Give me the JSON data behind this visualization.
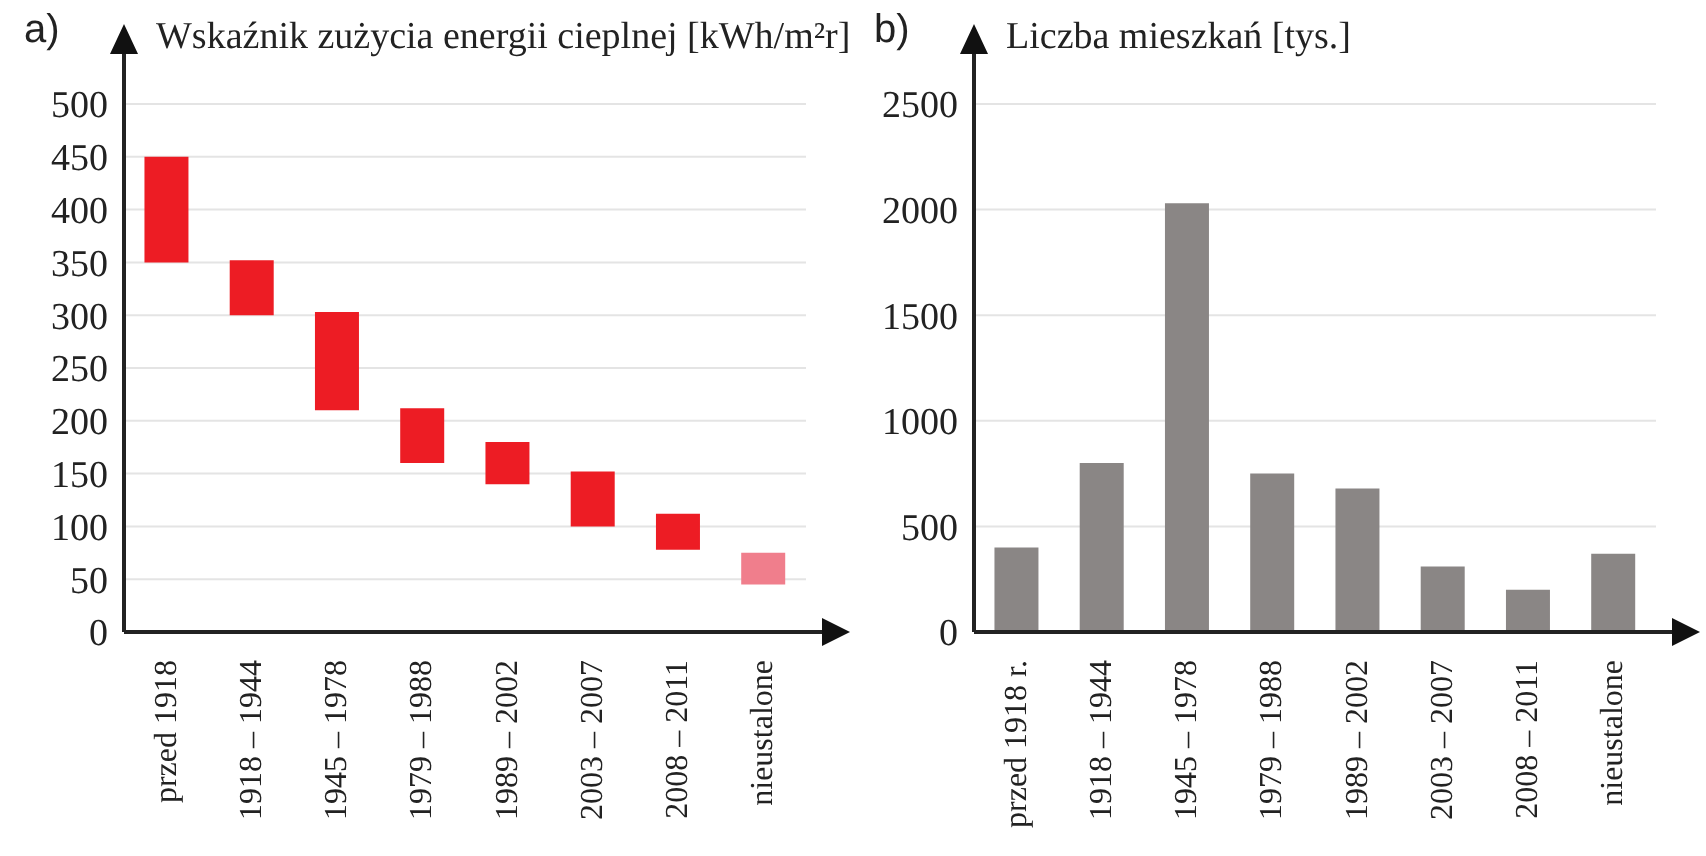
{
  "chart_data": [
    {
      "type": "bar",
      "ylabel": "Wskaźnik zużycia energii cieplnej [kWh/m²r]",
      "annotations": [
        "a)"
      ],
      "categories": [
        "przed 1918",
        "1918 – 1944",
        "1945 – 1978",
        "1979 – 1988",
        "1989 – 2002",
        "2003 – 2007",
        "2008 – 2011",
        "nieustalone"
      ],
      "base": [
        350,
        300,
        210,
        160,
        140,
        100,
        78,
        45
      ],
      "values": [
        100,
        52,
        93,
        52,
        40,
        52,
        34,
        30
      ],
      "colors": [
        "#ed1c24",
        "#ed1c24",
        "#ed1c24",
        "#ed1c24",
        "#ed1c24",
        "#ed1c24",
        "#ed1c24",
        "#f07e8c"
      ],
      "ylim": [
        0,
        500
      ],
      "yticks": [
        0,
        50,
        100,
        150,
        200,
        250,
        300,
        350,
        400,
        450,
        500
      ],
      "grid": "y"
    },
    {
      "type": "bar",
      "ylabel": "Liczba mieszkań [tys.]",
      "annotations": [
        "b)"
      ],
      "categories": [
        "przed 1918 r.",
        "1918 – 1944",
        "1945 – 1978",
        "1979 – 1988",
        "1989 – 2002",
        "2003 – 2007",
        "2008 – 2011",
        "nieustalone"
      ],
      "values": [
        400,
        800,
        2030,
        750,
        680,
        310,
        200,
        370
      ],
      "color": "#8a8685",
      "ylim": [
        0,
        2500
      ],
      "yticks": [
        0,
        500,
        1000,
        1500,
        2000,
        2500
      ],
      "grid": "y"
    }
  ]
}
